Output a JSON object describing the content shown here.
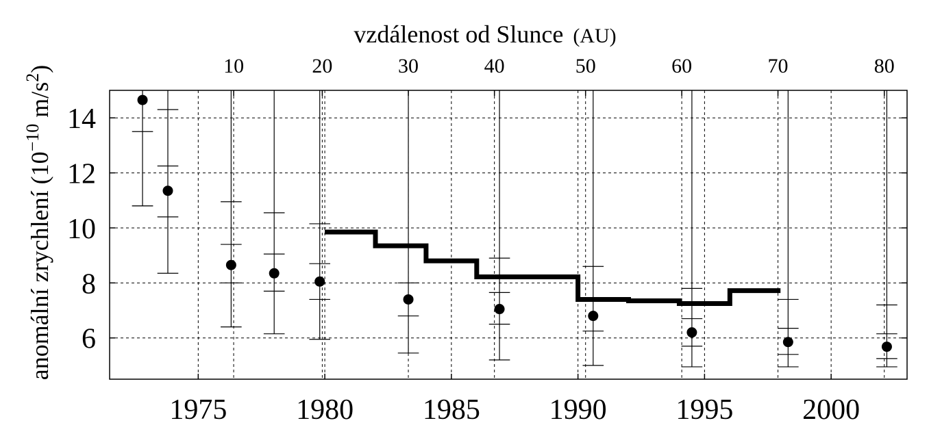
{
  "chart_data": {
    "type": "scatter",
    "x_axis": {
      "ticks": [
        1975,
        1980,
        1985,
        1990,
        1995,
        2000
      ],
      "range": [
        1971.5,
        2003
      ]
    },
    "top_axis": {
      "title_main": "vzdálenost od Slunce",
      "title_unit": "(AU)",
      "ticks": [
        {
          "label": "10",
          "year": 1976.4
        },
        {
          "label": "20",
          "year": 1979.9
        },
        {
          "label": "30",
          "year": 1983.3
        },
        {
          "label": "40",
          "year": 1986.7
        },
        {
          "label": "50",
          "year": 1990.3
        },
        {
          "label": "60",
          "year": 1994.1
        },
        {
          "label": "70",
          "year": 1997.9
        },
        {
          "label": "80",
          "year": 2002.1
        }
      ]
    },
    "y_axis": {
      "label_main": "anomální zrychlení (10",
      "label_exp": "−10",
      "label_unit": " m/s",
      "label_unit_exp": "2",
      "label_close": ")",
      "ticks": [
        6,
        8,
        10,
        12,
        14
      ],
      "range": [
        4.5,
        15.0
      ]
    },
    "grid": true,
    "points": [
      {
        "x": 1972.8,
        "y": 14.65,
        "err_outer": [
          10.8,
          15.0
        ],
        "err_inner": [
          10.8,
          13.5
        ]
      },
      {
        "x": 1973.8,
        "y": 11.35,
        "err_outer": [
          8.35,
          14.3
        ],
        "err_inner": [
          10.4,
          12.25
        ]
      },
      {
        "x": 1976.3,
        "y": 8.65,
        "err_outer": [
          6.4,
          10.95
        ],
        "err_inner": [
          8.0,
          9.4
        ]
      },
      {
        "x": 1978.0,
        "y": 8.35,
        "err_outer": [
          6.15,
          10.55
        ],
        "err_inner": [
          7.7,
          9.05
        ]
      },
      {
        "x": 1979.8,
        "y": 8.05,
        "err_outer": [
          5.95,
          10.15
        ],
        "err_inner": [
          7.4,
          8.7
        ]
      },
      {
        "x": 1983.3,
        "y": 7.4,
        "err_outer": [
          5.45,
          9.3
        ],
        "err_inner": [
          6.8,
          8.0
        ]
      },
      {
        "x": 1986.9,
        "y": 7.05,
        "err_outer": [
          5.2,
          8.9
        ],
        "err_inner": [
          6.5,
          7.65
        ]
      },
      {
        "x": 1990.6,
        "y": 6.8,
        "err_outer": [
          5.0,
          8.6
        ],
        "err_inner": [
          6.25,
          7.35
        ]
      },
      {
        "x": 1994.5,
        "y": 6.2,
        "err_outer": [
          4.95,
          7.8
        ],
        "err_inner": [
          5.7,
          6.7
        ]
      },
      {
        "x": 1998.3,
        "y": 5.85,
        "err_outer": [
          4.95,
          7.4
        ],
        "err_inner": [
          5.4,
          6.35
        ]
      },
      {
        "x": 2002.2,
        "y": 5.68,
        "err_outer": [
          4.95,
          7.2
        ],
        "err_inner": [
          5.25,
          6.15
        ]
      }
    ],
    "step_line": [
      {
        "x0": 1980.0,
        "x1": 1982.0,
        "y": 9.85
      },
      {
        "x0": 1982.0,
        "x1": 1984.0,
        "y": 9.35
      },
      {
        "x0": 1984.0,
        "x1": 1986.0,
        "y": 8.8
      },
      {
        "x0": 1986.0,
        "x1": 1990.0,
        "y": 8.22
      },
      {
        "x0": 1990.0,
        "x1": 1992.0,
        "y": 7.4
      },
      {
        "x0": 1992.0,
        "x1": 1994.0,
        "y": 7.35
      },
      {
        "x0": 1994.0,
        "x1": 1996.0,
        "y": 7.25
      },
      {
        "x0": 1996.0,
        "x1": 1998.0,
        "y": 7.72
      }
    ]
  }
}
